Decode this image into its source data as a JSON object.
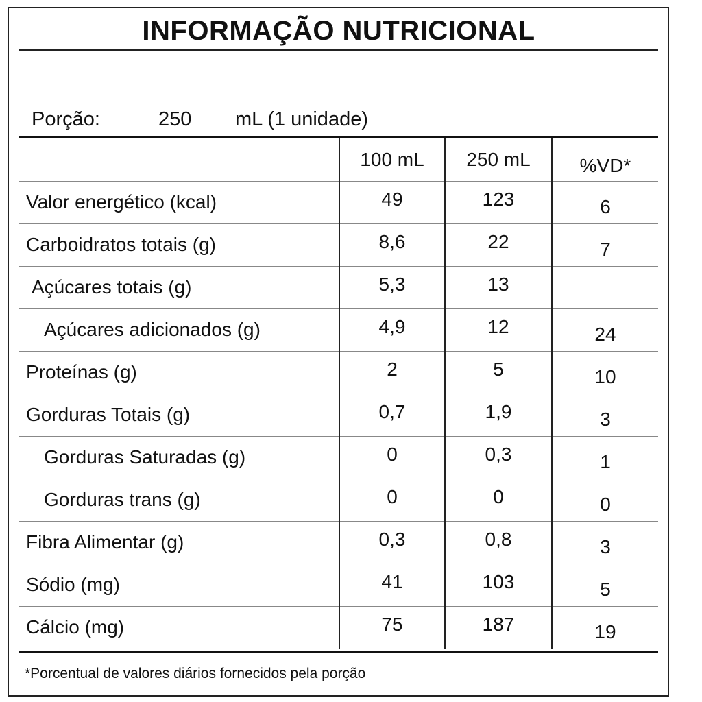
{
  "title": "INFORMAÇÃO NUTRICIONAL",
  "portion": {
    "label": "Porção:",
    "quantity": "250",
    "unit": "mL (1 unidade)"
  },
  "table": {
    "headers": [
      "",
      "100 mL",
      "250 mL",
      "%VD*"
    ],
    "rows": [
      {
        "nutrient": "Valor energético (kcal)",
        "per100": "49",
        "per250": "123",
        "vd": "6"
      },
      {
        "nutrient": "Carboidratos totais (g)",
        "per100": "8,6",
        "per250": "22",
        "vd": "7"
      },
      {
        "nutrient": "Açúcares totais (g)",
        "per100": "5,3",
        "per250": "13",
        "vd": ""
      },
      {
        "nutrient": "Açúcares adicionados (g)",
        "per100": "4,9",
        "per250": "12",
        "vd": "24"
      },
      {
        "nutrient": "Proteínas (g)",
        "per100": "2",
        "per250": "5",
        "vd": "10"
      },
      {
        "nutrient": "Gorduras Totais (g)",
        "per100": "0,7",
        "per250": "1,9",
        "vd": "3"
      },
      {
        "nutrient": "Gorduras Saturadas (g)",
        "per100": "0",
        "per250": "0,3",
        "vd": "1"
      },
      {
        "nutrient": "Gorduras trans (g)",
        "per100": "0",
        "per250": "0",
        "vd": "0"
      },
      {
        "nutrient": "Fibra Alimentar (g)",
        "per100": "0,3",
        "per250": "0,8",
        "vd": "3"
      },
      {
        "nutrient": "Sódio (mg)",
        "per100": "41",
        "per250": "103",
        "vd": "5"
      },
      {
        "nutrient": "Cálcio (mg)",
        "per100": "75",
        "per250": "187",
        "vd": "19"
      }
    ]
  },
  "footnote": "*Porcentual de valores diários fornecidos pela porção"
}
